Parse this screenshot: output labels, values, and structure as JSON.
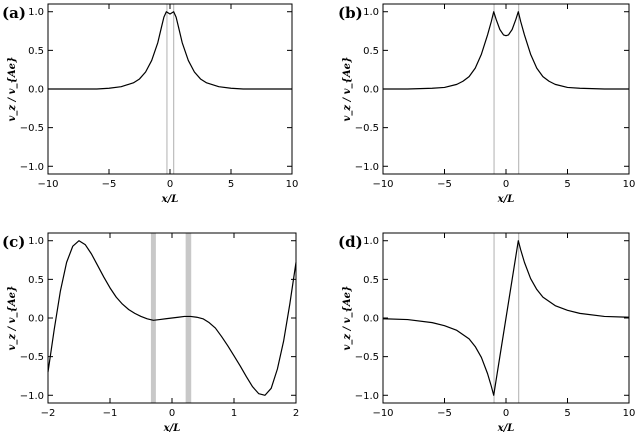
{
  "chart_data": [
    {
      "panel": "(a)",
      "type": "line",
      "xlabel": "x/L",
      "ylabel": "v_z / v_{Ae}",
      "xlim": [
        -10,
        10
      ],
      "ylim": [
        -1.1,
        1.1
      ],
      "xticks": [
        -10,
        -5,
        0,
        5,
        10
      ],
      "yticks": [
        -1.0,
        -0.5,
        0.0,
        0.5,
        1.0
      ],
      "series": [
        {
          "x": [
            -10,
            -8,
            -6,
            -5,
            -4,
            -3,
            -2.5,
            -2,
            -1.5,
            -1,
            -0.7,
            -0.5,
            -0.3,
            -0.2,
            0,
            0.2,
            0.3,
            0.5,
            0.7,
            1,
            1.5,
            2,
            2.5,
            3,
            4,
            5,
            6,
            8,
            10
          ],
          "y": [
            0.0,
            0.0,
            0.0,
            0.01,
            0.03,
            0.08,
            0.13,
            0.22,
            0.37,
            0.6,
            0.8,
            0.93,
            1.0,
            0.99,
            0.97,
            0.99,
            1.0,
            0.93,
            0.8,
            0.6,
            0.37,
            0.22,
            0.13,
            0.08,
            0.03,
            0.01,
            0.0,
            0.0,
            0.0
          ]
        }
      ],
      "bands": [
        [
          -0.3,
          -0.25
        ],
        [
          0.25,
          0.3
        ]
      ]
    },
    {
      "panel": "(b)",
      "type": "line",
      "xlabel": "x/L",
      "ylabel": "v_z / v_{Ae}",
      "xlim": [
        -10,
        10
      ],
      "ylim": [
        -1.1,
        1.1
      ],
      "xticks": [
        -10,
        -5,
        0,
        5,
        10
      ],
      "yticks": [
        -1.0,
        -0.5,
        0.0,
        0.5,
        1.0
      ],
      "series": [
        {
          "x": [
            -10,
            -8,
            -6,
            -5,
            -4,
            -3.5,
            -3,
            -2.5,
            -2,
            -1.5,
            -1.2,
            -1,
            -0.8,
            -0.5,
            -0.2,
            0,
            0.2,
            0.5,
            0.8,
            1,
            1.2,
            1.5,
            2,
            2.5,
            3,
            3.5,
            4,
            5,
            6,
            8,
            10
          ],
          "y": [
            0.0,
            0.0,
            0.01,
            0.02,
            0.06,
            0.1,
            0.16,
            0.27,
            0.45,
            0.7,
            0.87,
            1.0,
            0.9,
            0.77,
            0.7,
            0.69,
            0.7,
            0.77,
            0.9,
            1.0,
            0.87,
            0.7,
            0.45,
            0.27,
            0.16,
            0.1,
            0.06,
            0.02,
            0.01,
            0.0,
            0.0
          ]
        }
      ],
      "bands": [
        [
          -1.02,
          -0.98
        ],
        [
          0.98,
          1.02
        ]
      ]
    },
    {
      "panel": "(c)",
      "type": "line",
      "xlabel": "x/L",
      "ylabel": "v_z / v_{Ae}",
      "xlim": [
        -2,
        2
      ],
      "ylim": [
        -1.1,
        1.1
      ],
      "xticks": [
        -2,
        -1,
        0,
        1,
        2
      ],
      "yticks": [
        -1.0,
        -0.5,
        0.0,
        0.5,
        1.0
      ],
      "series": [
        {
          "x": [
            -2,
            -1.9,
            -1.8,
            -1.7,
            -1.6,
            -1.5,
            -1.4,
            -1.3,
            -1.2,
            -1.1,
            -1.0,
            -0.9,
            -0.8,
            -0.7,
            -0.6,
            -0.5,
            -0.4,
            -0.3,
            -0.2,
            -0.1,
            0,
            0.1,
            0.2,
            0.3,
            0.4,
            0.5,
            0.6,
            0.7,
            0.8,
            0.9,
            1.0,
            1.1,
            1.2,
            1.3,
            1.4,
            1.5,
            1.6,
            1.7,
            1.8,
            1.9,
            2.0
          ],
          "y": [
            -0.7,
            -0.15,
            0.35,
            0.72,
            0.93,
            1.0,
            0.95,
            0.83,
            0.68,
            0.53,
            0.39,
            0.27,
            0.18,
            0.11,
            0.06,
            0.02,
            -0.01,
            -0.03,
            -0.02,
            -0.01,
            0.0,
            0.01,
            0.02,
            0.02,
            0.01,
            -0.01,
            -0.06,
            -0.13,
            -0.24,
            -0.36,
            -0.49,
            -0.62,
            -0.76,
            -0.89,
            -0.98,
            -1.0,
            -0.91,
            -0.66,
            -0.3,
            0.18,
            0.72
          ]
        }
      ],
      "bands": [
        [
          -0.34,
          -0.26
        ],
        [
          0.22,
          0.31
        ]
      ]
    },
    {
      "panel": "(d)",
      "type": "line",
      "xlabel": "x/L",
      "ylabel": "v_z / v_{Ae}",
      "xlim": [
        -10,
        10
      ],
      "ylim": [
        -1.1,
        1.1
      ],
      "xticks": [
        -10,
        -5,
        0,
        5,
        10
      ],
      "yticks": [
        -1.0,
        -0.5,
        0.0,
        0.5,
        1.0
      ],
      "series": [
        {
          "x": [
            -10,
            -8,
            -6,
            -5,
            -4,
            -3,
            -2.5,
            -2,
            -1.5,
            -1.2,
            -1,
            -0.5,
            0,
            0.5,
            1,
            1.2,
            1.5,
            2,
            2.5,
            3,
            4,
            5,
            6,
            8,
            10
          ],
          "y": [
            -0.01,
            -0.02,
            -0.06,
            -0.1,
            -0.16,
            -0.27,
            -0.37,
            -0.51,
            -0.72,
            -0.88,
            -1.0,
            -0.5,
            0.0,
            0.5,
            1.0,
            0.88,
            0.72,
            0.51,
            0.37,
            0.27,
            0.16,
            0.1,
            0.06,
            0.02,
            0.01
          ]
        }
      ],
      "bands": [
        [
          -1.02,
          -0.98
        ],
        [
          0.98,
          1.02
        ]
      ]
    }
  ]
}
